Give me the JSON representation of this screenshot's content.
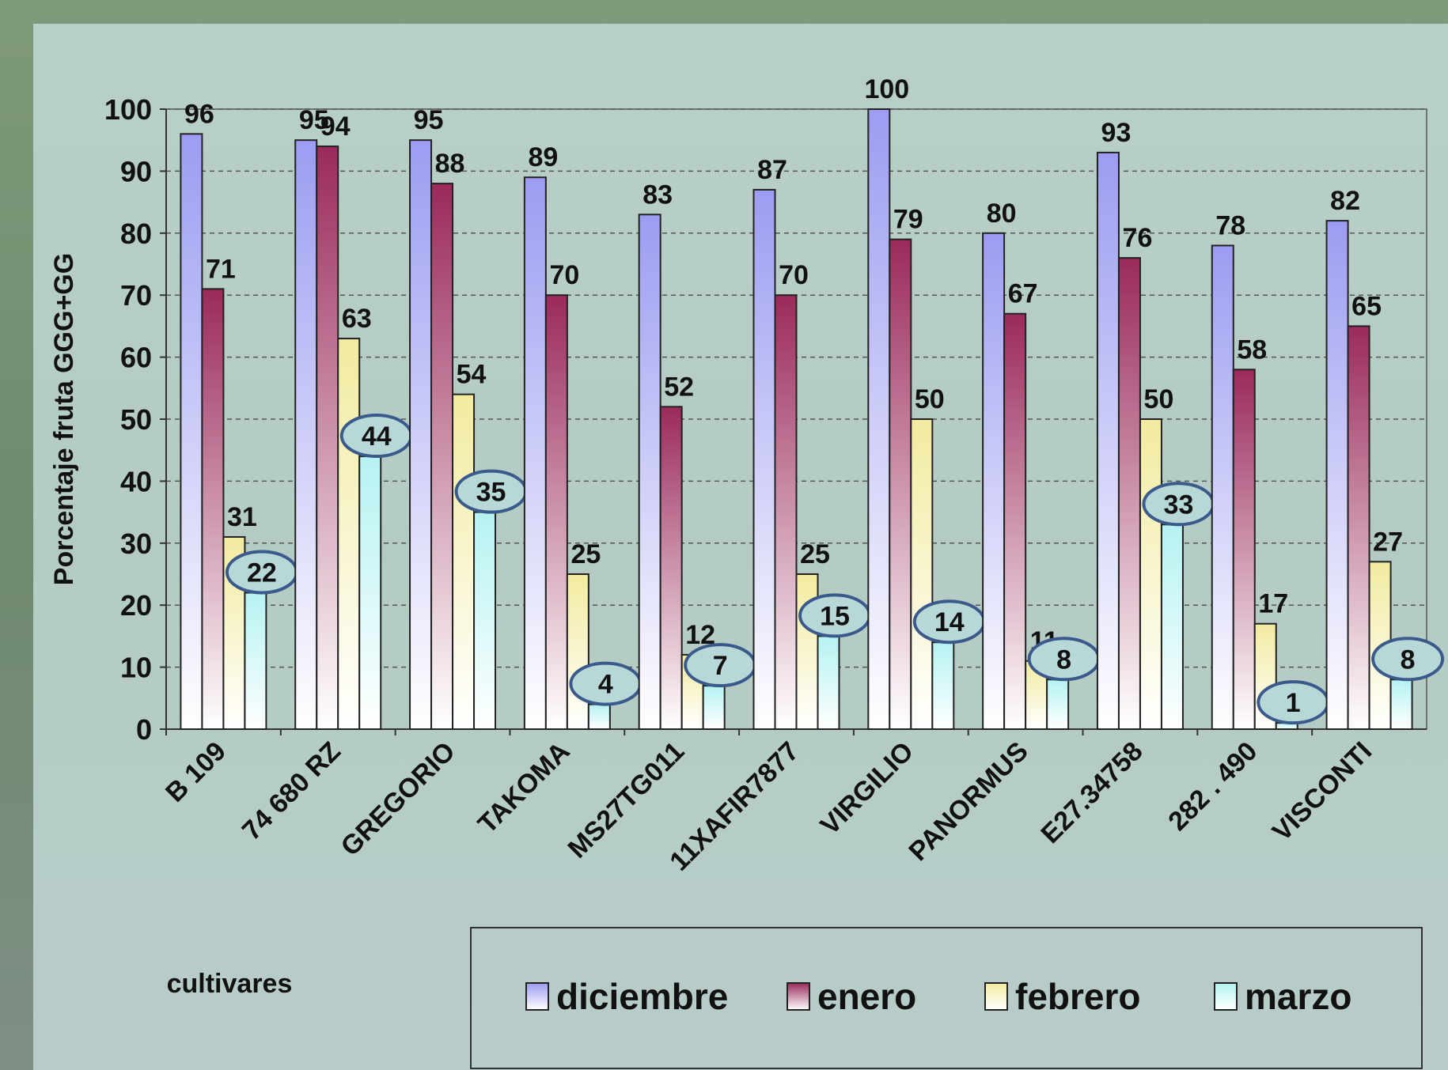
{
  "chart_data": {
    "type": "bar",
    "y_label": "Porcentaje fruta GGG+GG",
    "x_label": "cultivares",
    "categories": [
      "B 109",
      "74 680 RZ",
      "GREGORIO",
      "TAKOMA",
      "MS27TG011",
      "11XAFIR7877",
      "VIRGILIO",
      "PANORMUS",
      "E27.34758",
      "282 . 490",
      "VISCONTI"
    ],
    "series": [
      {
        "name": "diciembre",
        "color": "#9c9cf2",
        "values": [
          96,
          95,
          95,
          89,
          83,
          87,
          100,
          80,
          93,
          78,
          82
        ]
      },
      {
        "name": "enero",
        "color": "#9a2a5a",
        "values": [
          71,
          94,
          88,
          70,
          52,
          70,
          79,
          67,
          76,
          58,
          65
        ]
      },
      {
        "name": "febrero",
        "color": "#f2eba0",
        "values": [
          31,
          63,
          54,
          25,
          12,
          25,
          50,
          11,
          50,
          17,
          27
        ]
      },
      {
        "name": "marzo",
        "color": "#b5f2f2",
        "values": [
          22,
          44,
          35,
          4,
          7,
          15,
          14,
          8,
          33,
          1,
          8
        ]
      }
    ],
    "ylim": [
      0,
      100
    ],
    "yticks": [
      0,
      10,
      20,
      30,
      40,
      50,
      60,
      70,
      80,
      90,
      100
    ],
    "grid": true
  }
}
